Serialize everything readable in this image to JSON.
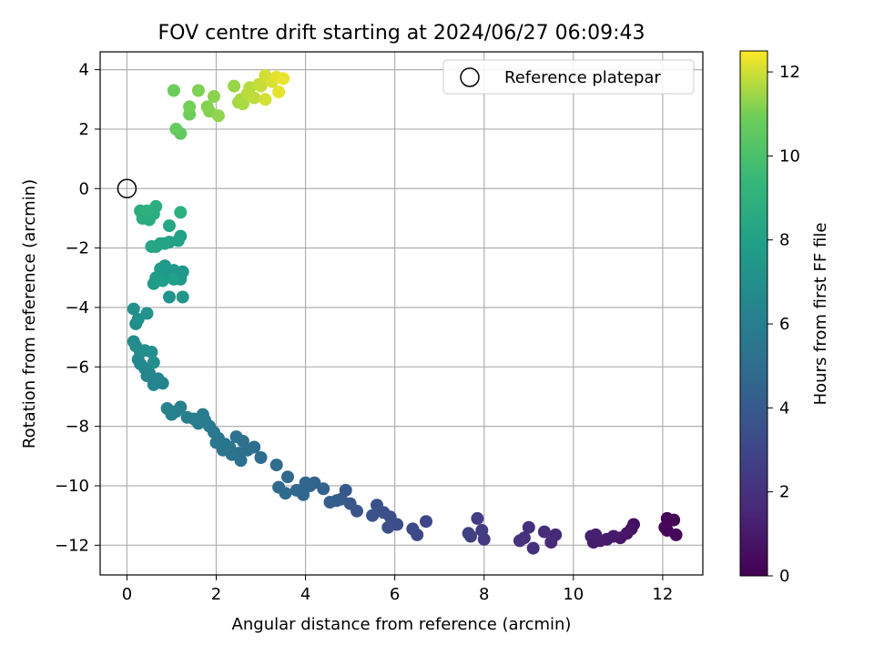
{
  "chart_data": {
    "type": "scatter",
    "title": "FOV centre drift starting at 2024/06/27 06:09:43",
    "xlabel": "Angular distance from reference (arcmin)",
    "ylabel": "Rotation from reference (arcmin)",
    "xlim": [
      -0.6,
      12.9
    ],
    "ylim": [
      -13.0,
      4.6
    ],
    "xticks": [
      0,
      2,
      4,
      6,
      8,
      10,
      12
    ],
    "yticks": [
      -12,
      -10,
      -8,
      -6,
      -4,
      -2,
      0,
      2,
      4
    ],
    "grid": true,
    "legend": {
      "position": "top-right",
      "label": "Reference platepar"
    },
    "reference_point": {
      "x": 0,
      "y": 0
    },
    "colorbar": {
      "label": "Hours from first FF file",
      "colormap": "viridis",
      "range": [
        0,
        12.5
      ],
      "ticks": [
        0,
        2,
        4,
        6,
        8,
        10,
        12
      ]
    },
    "series": [
      {
        "points": [
          [
            12.1,
            -11.1,
            0.1
          ],
          [
            12.25,
            -11.15,
            0.15
          ],
          [
            12.05,
            -11.4,
            0.2
          ],
          [
            12.1,
            -11.5,
            0.25
          ],
          [
            12.3,
            -11.65,
            0.3
          ],
          [
            11.35,
            -11.3,
            0.6
          ],
          [
            11.3,
            -11.45,
            0.7
          ],
          [
            11.2,
            -11.6,
            0.8
          ],
          [
            11.05,
            -11.75,
            0.9
          ],
          [
            10.9,
            -11.7,
            1.0
          ],
          [
            10.75,
            -11.8,
            1.05
          ],
          [
            10.6,
            -11.85,
            1.1
          ],
          [
            10.45,
            -11.9,
            1.15
          ],
          [
            10.4,
            -11.7,
            1.2
          ],
          [
            10.5,
            -11.65,
            1.25
          ],
          [
            9.6,
            -11.65,
            1.6
          ],
          [
            9.5,
            -11.9,
            1.7
          ],
          [
            9.35,
            -11.55,
            1.8
          ],
          [
            9.1,
            -12.1,
            1.9
          ],
          [
            9.0,
            -11.4,
            1.95
          ],
          [
            8.9,
            -11.75,
            2.0
          ],
          [
            8.8,
            -11.85,
            2.1
          ],
          [
            8.0,
            -11.8,
            2.4
          ],
          [
            7.95,
            -11.5,
            2.5
          ],
          [
            7.85,
            -11.1,
            2.55
          ],
          [
            7.7,
            -11.7,
            2.6
          ],
          [
            7.65,
            -11.6,
            2.7
          ],
          [
            6.7,
            -11.2,
            3.0
          ],
          [
            6.5,
            -11.65,
            3.1
          ],
          [
            6.4,
            -11.45,
            3.2
          ],
          [
            6.05,
            -11.3,
            3.3
          ],
          [
            5.9,
            -11.05,
            3.4
          ],
          [
            5.85,
            -11.4,
            3.45
          ],
          [
            5.75,
            -10.9,
            3.5
          ],
          [
            5.6,
            -10.65,
            3.55
          ],
          [
            5.5,
            -11.0,
            3.6
          ],
          [
            5.15,
            -10.85,
            3.8
          ],
          [
            5.0,
            -10.6,
            3.9
          ],
          [
            4.9,
            -10.15,
            4.0
          ],
          [
            4.8,
            -10.45,
            4.05
          ],
          [
            4.7,
            -10.5,
            4.1
          ],
          [
            4.55,
            -10.55,
            4.2
          ],
          [
            4.4,
            -10.1,
            4.4
          ],
          [
            4.2,
            -9.9,
            4.5
          ],
          [
            4.1,
            -10.0,
            4.55
          ],
          [
            4.0,
            -9.9,
            4.6
          ],
          [
            3.95,
            -10.3,
            4.65
          ],
          [
            3.8,
            -10.15,
            4.7
          ],
          [
            3.6,
            -9.7,
            4.75
          ],
          [
            3.55,
            -10.25,
            4.8
          ],
          [
            3.4,
            -10.05,
            4.85
          ],
          [
            3.35,
            -9.3,
            4.9
          ],
          [
            3.0,
            -9.05,
            5.0
          ],
          [
            2.85,
            -8.7,
            5.05
          ],
          [
            2.7,
            -8.8,
            5.1
          ],
          [
            2.6,
            -8.5,
            5.15
          ],
          [
            2.55,
            -9.15,
            5.2
          ],
          [
            2.5,
            -8.9,
            5.25
          ],
          [
            2.45,
            -8.35,
            5.3
          ],
          [
            2.35,
            -8.95,
            5.35
          ],
          [
            2.3,
            -8.7,
            5.4
          ],
          [
            2.2,
            -8.6,
            5.45
          ],
          [
            2.15,
            -8.8,
            5.5
          ],
          [
            2.05,
            -8.4,
            5.55
          ],
          [
            2.0,
            -8.55,
            5.6
          ],
          [
            1.95,
            -8.2,
            5.65
          ],
          [
            1.85,
            -8.0,
            5.7
          ],
          [
            1.75,
            -7.8,
            5.8
          ],
          [
            1.7,
            -7.6,
            5.85
          ],
          [
            1.6,
            -7.9,
            5.9
          ],
          [
            1.5,
            -7.75,
            6.0
          ],
          [
            1.35,
            -7.7,
            6.05
          ],
          [
            1.2,
            -7.35,
            6.1
          ],
          [
            1.1,
            -7.5,
            6.15
          ],
          [
            1.0,
            -7.6,
            6.2
          ],
          [
            0.9,
            -7.4,
            6.25
          ],
          [
            0.8,
            -6.55,
            6.3
          ],
          [
            0.7,
            -6.4,
            6.35
          ],
          [
            0.6,
            -6.6,
            6.4
          ],
          [
            0.5,
            -6.2,
            6.45
          ],
          [
            0.45,
            -6.3,
            6.5
          ],
          [
            0.4,
            -6.05,
            6.55
          ],
          [
            0.3,
            -5.9,
            6.6
          ],
          [
            0.25,
            -5.75,
            6.65
          ],
          [
            0.3,
            -5.5,
            6.7
          ],
          [
            0.2,
            -5.3,
            6.75
          ],
          [
            0.15,
            -5.15,
            6.8
          ],
          [
            0.2,
            -4.55,
            6.85
          ],
          [
            0.4,
            -5.45,
            6.9
          ],
          [
            0.55,
            -5.5,
            6.95
          ],
          [
            0.6,
            -5.85,
            7.0
          ],
          [
            0.25,
            -4.4,
            7.05
          ],
          [
            0.15,
            -4.05,
            7.1
          ],
          [
            0.45,
            -4.2,
            7.15
          ],
          [
            0.95,
            -3.65,
            7.3
          ],
          [
            1.25,
            -3.65,
            7.35
          ],
          [
            1.2,
            -3.05,
            7.4
          ],
          [
            1.25,
            -2.8,
            7.45
          ],
          [
            1.05,
            -2.75,
            7.5
          ],
          [
            0.95,
            -2.9,
            7.55
          ],
          [
            0.85,
            -2.6,
            7.6
          ],
          [
            0.75,
            -2.7,
            7.65
          ],
          [
            0.65,
            -3.0,
            7.7
          ],
          [
            0.6,
            -3.2,
            7.75
          ],
          [
            0.8,
            -3.1,
            7.8
          ],
          [
            1.05,
            -3.05,
            7.85
          ],
          [
            1.2,
            -1.6,
            8.0
          ],
          [
            1.15,
            -1.75,
            8.05
          ],
          [
            0.95,
            -1.8,
            8.1
          ],
          [
            0.85,
            -1.85,
            8.15
          ],
          [
            0.75,
            -1.85,
            8.2
          ],
          [
            0.65,
            -1.95,
            8.25
          ],
          [
            0.55,
            -1.95,
            8.3
          ],
          [
            0.95,
            -1.25,
            8.4
          ],
          [
            0.5,
            -1.05,
            8.6
          ],
          [
            0.35,
            -1.0,
            8.65
          ],
          [
            0.6,
            -0.85,
            8.7
          ],
          [
            0.3,
            -0.75,
            8.75
          ],
          [
            0.65,
            -0.6,
            8.8
          ],
          [
            0.45,
            -0.75,
            8.85
          ],
          [
            1.2,
            -0.8,
            8.9
          ],
          [
            1.2,
            1.85,
            10.6
          ],
          [
            1.1,
            2.0,
            10.7
          ],
          [
            1.05,
            3.3,
            10.8
          ],
          [
            1.4,
            2.5,
            10.9
          ],
          [
            1.4,
            2.75,
            11.0
          ],
          [
            1.6,
            3.3,
            11.1
          ],
          [
            1.8,
            2.75,
            11.15
          ],
          [
            1.85,
            2.6,
            11.2
          ],
          [
            1.95,
            3.1,
            11.25
          ],
          [
            2.05,
            2.45,
            11.3
          ],
          [
            2.4,
            3.45,
            11.4
          ],
          [
            2.5,
            2.9,
            11.5
          ],
          [
            2.55,
            3.0,
            11.55
          ],
          [
            2.6,
            2.85,
            11.6
          ],
          [
            2.75,
            3.4,
            11.7
          ],
          [
            2.7,
            3.2,
            11.75
          ],
          [
            2.85,
            3.05,
            11.8
          ],
          [
            2.95,
            3.5,
            11.85
          ],
          [
            3.0,
            3.45,
            11.9
          ],
          [
            3.1,
            3.8,
            12.0
          ],
          [
            3.1,
            3.0,
            12.05
          ],
          [
            3.25,
            3.6,
            12.1
          ],
          [
            3.35,
            3.75,
            12.2
          ],
          [
            3.4,
            3.25,
            12.25
          ],
          [
            3.5,
            3.7,
            12.3
          ]
        ]
      }
    ]
  }
}
